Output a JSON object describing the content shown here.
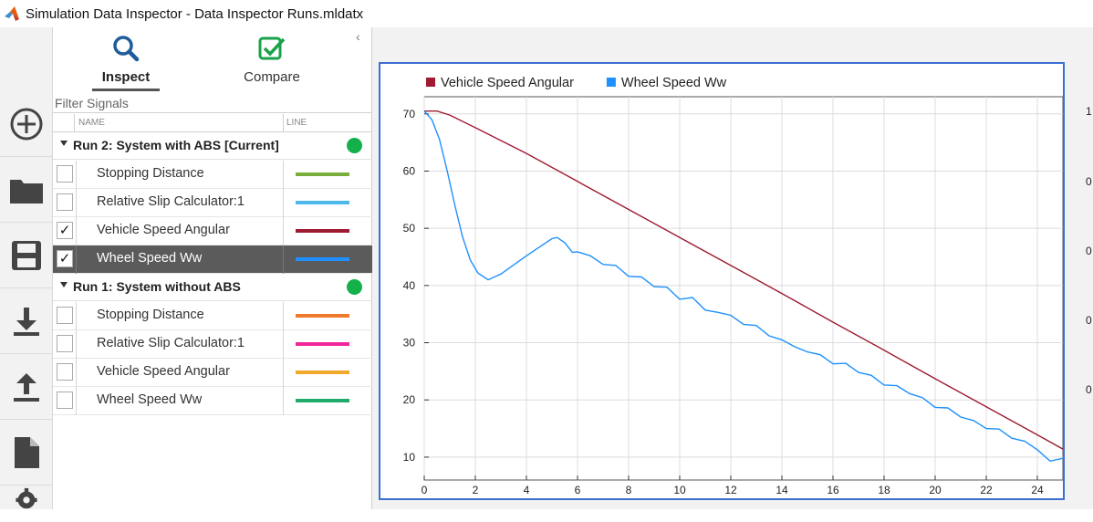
{
  "window": {
    "title": "Simulation Data Inspector - Data Inspector Runs.mldatx"
  },
  "toolbar": {
    "items": [
      {
        "name": "add-icon"
      },
      {
        "name": "folder-icon"
      },
      {
        "name": "save-icon"
      },
      {
        "name": "download-icon"
      },
      {
        "name": "upload-icon"
      },
      {
        "name": "document-icon"
      },
      {
        "name": "settings-icon"
      }
    ]
  },
  "tabs": {
    "inspect": {
      "label": "Inspect",
      "icon": "search-icon"
    },
    "compare": {
      "label": "Compare",
      "icon": "check-icon"
    },
    "collapse_glyph": "‹"
  },
  "filter": {
    "placeholder": "Filter Signals"
  },
  "columns": {
    "name": "NAME",
    "line": "LINE"
  },
  "runs": [
    {
      "label": "Run 2: System with ABS [Current]",
      "status_color": "#14b14b",
      "signals": [
        {
          "name": "Stopping Distance",
          "checked": false,
          "color": "#7aae3a"
        },
        {
          "name": "Relative Slip Calculator:1",
          "checked": false,
          "color": "#4db8ea"
        },
        {
          "name": "Vehicle Speed Angular",
          "checked": true,
          "color": "#9e1b32"
        },
        {
          "name": "Wheel Speed Ww",
          "checked": true,
          "color": "#1e90ff",
          "selected": true
        }
      ]
    },
    {
      "label": "Run 1: System without ABS",
      "status_color": "#14b14b",
      "signals": [
        {
          "name": "Stopping Distance",
          "checked": false,
          "color": "#f07a2b"
        },
        {
          "name": "Relative Slip Calculator:1",
          "checked": false,
          "color": "#f0269a"
        },
        {
          "name": "Vehicle Speed Angular",
          "checked": false,
          "color": "#f0a92b"
        },
        {
          "name": "Wheel Speed Ww",
          "checked": false,
          "color": "#20ab6a"
        }
      ]
    }
  ],
  "chart_data": {
    "type": "line",
    "xlim": [
      0,
      25
    ],
    "ylim": [
      6,
      73
    ],
    "x_ticks": [
      0,
      2,
      4,
      6,
      8,
      10,
      12,
      14,
      16,
      18,
      20,
      22,
      24
    ],
    "y_ticks": [
      10,
      20,
      30,
      40,
      50,
      60,
      70
    ],
    "grid": true,
    "legend": "top-left",
    "series": [
      {
        "name": "Vehicle Speed Angular",
        "color": "#9e1b32",
        "x": [
          0,
          0.5,
          1,
          2,
          4,
          6,
          8,
          10,
          12,
          14,
          16,
          18,
          20,
          22,
          24,
          25
        ],
        "values": [
          70.5,
          70.5,
          69.8,
          67.6,
          63.1,
          58.2,
          53.3,
          48.4,
          43.5,
          38.6,
          33.6,
          28.7,
          23.7,
          18.8,
          13.9,
          11.4
        ]
      },
      {
        "name": "Wheel Speed Ww",
        "color": "#1e90ff",
        "x": [
          0,
          0.3,
          0.6,
          0.9,
          1.2,
          1.5,
          1.8,
          2.1,
          2.5,
          3,
          4,
          5,
          5.2,
          5.5,
          5.8,
          6,
          6.5,
          7,
          7.5,
          8,
          8.5,
          9,
          9.5,
          10,
          10.5,
          11,
          11.5,
          12,
          12.5,
          13,
          13.5,
          14,
          14.5,
          15,
          15.5,
          16,
          16.5,
          17,
          17.5,
          18,
          18.5,
          19,
          19.5,
          20,
          20.5,
          21,
          21.5,
          22,
          22.5,
          23,
          23.5,
          24,
          24.5,
          25
        ],
        "values": [
          70.5,
          69,
          65.5,
          60,
          54,
          48.5,
          44.5,
          42.2,
          41,
          42,
          45.2,
          48.2,
          48.4,
          47.5,
          45.8,
          45.9,
          45.2,
          43.7,
          43.5,
          41.6,
          41.5,
          39.8,
          39.7,
          37.6,
          37.9,
          35.7,
          35.3,
          34.8,
          33.2,
          33.0,
          31.2,
          30.5,
          29.3,
          28.4,
          27.9,
          26.3,
          26.4,
          24.8,
          24.3,
          22.6,
          22.5,
          21.1,
          20.4,
          18.7,
          18.6,
          17.0,
          16.4,
          15.0,
          14.9,
          13.3,
          12.8,
          11.3,
          9.3,
          9.8
        ]
      }
    ]
  },
  "secondary_axis": {
    "ticks": [
      "1",
      "0",
      "0",
      "0",
      "0"
    ]
  }
}
